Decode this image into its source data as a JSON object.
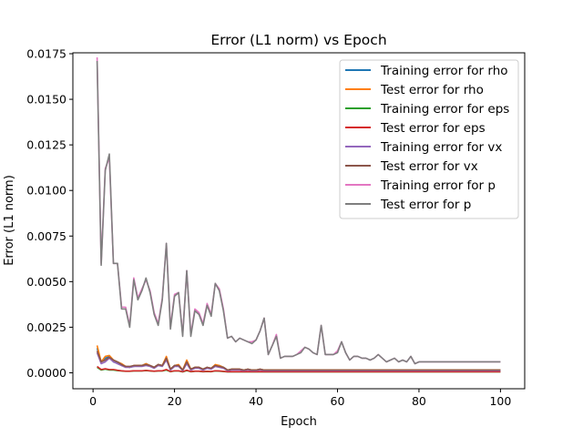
{
  "chart_data": {
    "type": "line",
    "title": "Error (L1 norm) vs Epoch",
    "xlabel": "Epoch",
    "ylabel": "Error (L1 norm)",
    "xlim": [
      -4.95,
      105.95
    ],
    "ylim": [
      -0.000875,
      0.01755
    ],
    "xticks": [
      0,
      20,
      40,
      60,
      80,
      100
    ],
    "xtick_labels": [
      "0",
      "20",
      "40",
      "60",
      "80",
      "100"
    ],
    "yticks": [
      0.0,
      0.0025,
      0.005,
      0.0075,
      0.01,
      0.0125,
      0.015,
      0.0175
    ],
    "ytick_labels": [
      "0.0000",
      "0.0025",
      "0.0050",
      "0.0075",
      "0.0100",
      "0.0125",
      "0.0150",
      "0.0175"
    ],
    "grid": false,
    "legend_position": "top-right",
    "x": [
      1,
      2,
      3,
      4,
      5,
      6,
      7,
      8,
      9,
      10,
      11,
      12,
      13,
      14,
      15,
      16,
      17,
      18,
      19,
      20,
      21,
      22,
      23,
      24,
      25,
      26,
      27,
      28,
      29,
      30,
      31,
      32,
      33,
      34,
      35,
      36,
      37,
      38,
      39,
      40,
      41,
      42,
      43,
      44,
      45,
      46,
      47,
      48,
      49,
      50,
      51,
      52,
      53,
      54,
      55,
      56,
      57,
      58,
      59,
      60,
      61,
      62,
      63,
      64,
      65,
      66,
      67,
      68,
      69,
      70,
      71,
      72,
      73,
      74,
      75,
      76,
      77,
      78,
      79,
      80,
      81,
      82,
      83,
      84,
      85,
      86,
      87,
      88,
      89,
      90,
      91,
      92,
      93,
      94,
      95,
      96,
      97,
      98,
      99,
      100
    ],
    "series": [
      {
        "name": "Training error for rho",
        "color": "#1f77b4",
        "values": [
          0.00135,
          0.0006,
          0.0008,
          0.0009,
          0.0006,
          0.00055,
          0.0004,
          0.00035,
          0.0003,
          0.00035,
          0.0004,
          0.0004,
          0.0005,
          0.0004,
          0.0003,
          0.00045,
          0.0004,
          0.0008,
          0.0002,
          0.0004,
          0.0004,
          0.00015,
          0.0006,
          0.0002,
          0.0003,
          0.0003,
          0.0002,
          0.0003,
          0.00025,
          0.0004,
          0.0004,
          0.0003,
          0.00015,
          0.0002,
          0.0002,
          0.0002,
          0.00015,
          0.0002,
          0.00015,
          0.00015,
          0.0002,
          0.00015,
          0.00015,
          0.00015,
          0.00015,
          0.00015,
          0.00015,
          0.00015,
          0.00015,
          0.00015,
          0.00015,
          0.00015,
          0.00015,
          0.00015,
          0.00015,
          0.00015,
          0.00015,
          0.00015,
          0.00015,
          0.00015,
          0.00015,
          0.00015,
          0.00015,
          0.00015,
          0.00015,
          0.00015,
          0.00015,
          0.00015,
          0.00015,
          0.00015,
          0.00015,
          0.00015,
          0.00015,
          0.00015,
          0.00015,
          0.00015,
          0.00015,
          0.00015,
          0.00015,
          0.00015,
          0.00015,
          0.00015,
          0.00015,
          0.00015,
          0.00015,
          0.00015,
          0.00015,
          0.00015,
          0.00015,
          0.00015,
          0.00015,
          0.00015,
          0.00015,
          0.00015,
          0.00015,
          0.00015,
          0.00015,
          0.00015,
          0.00015,
          0.00015
        ]
      },
      {
        "name": "Test error for rho",
        "color": "#ff7f0e",
        "values": [
          0.0015,
          0.0006,
          0.0009,
          0.00095,
          0.0007,
          0.0006,
          0.0005,
          0.00035,
          0.0003,
          0.0004,
          0.0004,
          0.0004,
          0.0005,
          0.0004,
          0.0003,
          0.00045,
          0.0004,
          0.0009,
          0.0002,
          0.0004,
          0.00045,
          0.00015,
          0.0007,
          0.0002,
          0.0003,
          0.0003,
          0.0002,
          0.0003,
          0.00025,
          0.00045,
          0.0004,
          0.0003,
          0.00015,
          0.0002,
          0.0002,
          0.0002,
          0.00015,
          0.0002,
          0.00015,
          0.00015,
          0.0002,
          0.00015,
          0.00015,
          0.00015,
          0.00015,
          0.00015,
          0.00015,
          0.00015,
          0.00015,
          0.00015,
          0.00015,
          0.00015,
          0.00015,
          0.00015,
          0.00015,
          0.00015,
          0.00015,
          0.00015,
          0.00015,
          0.00015,
          0.00015,
          0.00015,
          0.00015,
          0.00015,
          0.00015,
          0.00015,
          0.00015,
          0.00015,
          0.00015,
          0.00015,
          0.00015,
          0.00015,
          0.00015,
          0.00015,
          0.00015,
          0.00015,
          0.00015,
          0.00015,
          0.00015,
          0.00015,
          0.00015,
          0.00015,
          0.00015,
          0.00015,
          0.00015,
          0.00015,
          0.00015,
          0.00015,
          0.00015,
          0.00015,
          0.00015,
          0.00015,
          0.00015,
          0.00015,
          0.00015,
          0.00015,
          0.00015,
          0.00015,
          0.00015,
          0.00015
        ]
      },
      {
        "name": "Training error for eps",
        "color": "#2ca02c",
        "values": [
          0.0003,
          0.00015,
          0.0002,
          0.00015,
          0.00015,
          0.00012,
          0.0001,
          8e-05,
          8e-05,
          0.0001,
          0.0001,
          0.0001,
          0.00012,
          0.0001,
          8e-05,
          0.0001,
          0.0001,
          0.00015,
          6e-05,
          0.0001,
          0.0001,
          5e-05,
          0.00012,
          6e-05,
          8e-05,
          8e-05,
          6e-05,
          7e-05,
          6e-05,
          0.0001,
          9e-05,
          7e-05,
          5e-05,
          5e-05,
          5e-05,
          5e-05,
          5e-05,
          5e-05,
          5e-05,
          5e-05,
          5e-05,
          5e-05,
          5e-05,
          5e-05,
          5e-05,
          5e-05,
          5e-05,
          5e-05,
          5e-05,
          5e-05,
          5e-05,
          5e-05,
          5e-05,
          5e-05,
          5e-05,
          5e-05,
          5e-05,
          5e-05,
          5e-05,
          5e-05,
          5e-05,
          5e-05,
          5e-05,
          5e-05,
          5e-05,
          5e-05,
          5e-05,
          5e-05,
          5e-05,
          5e-05,
          5e-05,
          5e-05,
          5e-05,
          5e-05,
          5e-05,
          5e-05,
          5e-05,
          5e-05,
          5e-05,
          5e-05,
          5e-05,
          5e-05,
          5e-05,
          5e-05,
          5e-05,
          5e-05,
          5e-05,
          5e-05,
          5e-05,
          5e-05,
          5e-05,
          5e-05,
          5e-05,
          5e-05,
          5e-05,
          5e-05,
          5e-05,
          5e-05,
          5e-05,
          5e-05
        ]
      },
      {
        "name": "Test error for eps",
        "color": "#d62728",
        "values": [
          0.00035,
          0.00018,
          0.00022,
          0.00018,
          0.00018,
          0.00014,
          0.00011,
          9e-05,
          9e-05,
          0.00011,
          0.00011,
          0.00011,
          0.00013,
          0.00011,
          9e-05,
          0.00011,
          0.00011,
          0.00018,
          7e-05,
          0.00011,
          0.00011,
          6e-05,
          0.00014,
          7e-05,
          9e-05,
          9e-05,
          7e-05,
          8e-05,
          7e-05,
          0.00011,
          0.0001,
          8e-05,
          6e-05,
          6e-05,
          6e-05,
          6e-05,
          6e-05,
          6e-05,
          6e-05,
          6e-05,
          6e-05,
          6e-05,
          6e-05,
          6e-05,
          6e-05,
          6e-05,
          6e-05,
          6e-05,
          6e-05,
          6e-05,
          6e-05,
          6e-05,
          6e-05,
          6e-05,
          6e-05,
          6e-05,
          6e-05,
          6e-05,
          6e-05,
          6e-05,
          6e-05,
          6e-05,
          6e-05,
          6e-05,
          6e-05,
          6e-05,
          6e-05,
          6e-05,
          6e-05,
          6e-05,
          6e-05,
          6e-05,
          6e-05,
          6e-05,
          6e-05,
          6e-05,
          6e-05,
          6e-05,
          6e-05,
          6e-05,
          6e-05,
          6e-05,
          6e-05,
          6e-05,
          6e-05,
          6e-05,
          6e-05,
          6e-05,
          6e-05,
          6e-05,
          6e-05,
          6e-05,
          6e-05,
          6e-05,
          6e-05,
          6e-05,
          6e-05,
          6e-05,
          6e-05,
          6e-05
        ]
      },
      {
        "name": "Training error for vx",
        "color": "#9467bd",
        "values": [
          0.0011,
          0.0005,
          0.0006,
          0.0008,
          0.0006,
          0.0005,
          0.0004,
          0.0003,
          0.0003,
          0.00035,
          0.00035,
          0.00035,
          0.0004,
          0.00035,
          0.00025,
          0.0004,
          0.00035,
          0.0007,
          0.00015,
          0.00035,
          0.00035,
          0.00012,
          0.0005,
          0.00015,
          0.00025,
          0.00025,
          0.00015,
          0.00025,
          0.0002,
          0.00035,
          0.0003,
          0.00025,
          0.00012,
          0.00015,
          0.00015,
          0.00015,
          0.00012,
          0.00015,
          0.00012,
          0.00012,
          0.00015,
          0.00012,
          0.00012,
          0.00012,
          0.00012,
          0.00012,
          0.00012,
          0.00012,
          0.00012,
          0.00012,
          0.00012,
          0.00012,
          0.00012,
          0.00012,
          0.00012,
          0.00012,
          0.00012,
          0.00012,
          0.00012,
          0.00012,
          0.00012,
          0.00012,
          0.00012,
          0.00012,
          0.00012,
          0.00012,
          0.00012,
          0.00012,
          0.00012,
          0.00012,
          0.00012,
          0.00012,
          0.00012,
          0.00012,
          0.00012,
          0.00012,
          0.00012,
          0.00012,
          0.00012,
          0.00012,
          0.00012,
          0.00012,
          0.00012,
          0.00012,
          0.00012,
          0.00012,
          0.00012,
          0.00012,
          0.00012,
          0.00012,
          0.00012,
          0.00012,
          0.00012,
          0.00012,
          0.00012,
          0.00012,
          0.00012,
          0.00012,
          0.00012,
          0.00012
        ]
      },
      {
        "name": "Test error for vx",
        "color": "#8c564b",
        "values": [
          0.0012,
          0.0006,
          0.0007,
          0.00085,
          0.0007,
          0.0006,
          0.00045,
          0.00035,
          0.00035,
          0.0004,
          0.0004,
          0.0004,
          0.00045,
          0.0004,
          0.0003,
          0.00045,
          0.0004,
          0.0008,
          0.0002,
          0.0004,
          0.0004,
          0.00015,
          0.0006,
          0.0002,
          0.0003,
          0.0003,
          0.0002,
          0.0003,
          0.00025,
          0.0004,
          0.00035,
          0.0003,
          0.00015,
          0.0002,
          0.0002,
          0.0002,
          0.00015,
          0.0002,
          0.00015,
          0.00015,
          0.0002,
          0.00015,
          0.00015,
          0.00015,
          0.00015,
          0.00015,
          0.00015,
          0.00015,
          0.00015,
          0.00015,
          0.00015,
          0.00015,
          0.00015,
          0.00015,
          0.00015,
          0.00015,
          0.00015,
          0.00015,
          0.00015,
          0.00015,
          0.00015,
          0.00015,
          0.00015,
          0.00015,
          0.00015,
          0.00015,
          0.00015,
          0.00015,
          0.00015,
          0.00015,
          0.00015,
          0.00015,
          0.00015,
          0.00015,
          0.00015,
          0.00015,
          0.00015,
          0.00015,
          0.00015,
          0.00015,
          0.00015,
          0.00015,
          0.00015,
          0.00015,
          0.00015,
          0.00015,
          0.00015,
          0.00015,
          0.00015,
          0.00015,
          0.00015,
          0.00015,
          0.00015,
          0.00015,
          0.00015,
          0.00015,
          0.00015,
          0.00015,
          0.00015,
          0.00015
        ]
      },
      {
        "name": "Training error for p",
        "color": "#e377c2",
        "values": [
          0.0173,
          0.006,
          0.0112,
          0.0118,
          0.006,
          0.006,
          0.0036,
          0.0036,
          0.0026,
          0.0052,
          0.0041,
          0.0046,
          0.0051,
          0.0045,
          0.0033,
          0.0027,
          0.0041,
          0.0071,
          0.0025,
          0.0043,
          0.0044,
          0.0021,
          0.0056,
          0.0021,
          0.0035,
          0.0033,
          0.0027,
          0.0038,
          0.0032,
          0.0049,
          0.0046,
          0.0035,
          0.0019,
          0.002,
          0.0017,
          0.0019,
          0.0018,
          0.0017,
          0.0017,
          0.0018,
          0.0023,
          0.003,
          0.001,
          0.0015,
          0.0021,
          0.0008,
          0.0009,
          0.0009,
          0.0009,
          0.001,
          0.0012,
          0.0014,
          0.0013,
          0.0011,
          0.001,
          0.0026,
          0.001,
          0.001,
          0.001,
          0.0012,
          0.0017,
          0.0011,
          0.0007,
          0.0009,
          0.0009,
          0.0008,
          0.0008,
          0.0007,
          0.0008,
          0.001,
          0.0008,
          0.0006,
          0.0007,
          0.0008,
          0.0006,
          0.0007,
          0.0006,
          0.0009,
          0.0005,
          0.0006,
          0.0006,
          0.0006,
          0.0006,
          0.0006,
          0.0006,
          0.0006,
          0.0006,
          0.0006,
          0.0006,
          0.0006,
          0.0006,
          0.0006,
          0.0006,
          0.0006,
          0.0006,
          0.0006,
          0.0006,
          0.0006,
          0.0006,
          0.0006
        ]
      },
      {
        "name": "Test error for p",
        "color": "#7f7f7f",
        "values": [
          0.0171,
          0.0059,
          0.0111,
          0.012,
          0.006,
          0.006,
          0.0035,
          0.0035,
          0.0025,
          0.0051,
          0.004,
          0.0045,
          0.0052,
          0.0044,
          0.0032,
          0.0026,
          0.004,
          0.0071,
          0.0024,
          0.0042,
          0.0044,
          0.002,
          0.0056,
          0.002,
          0.0034,
          0.0032,
          0.0026,
          0.0037,
          0.0031,
          0.0049,
          0.0045,
          0.0034,
          0.0019,
          0.002,
          0.0017,
          0.0019,
          0.0018,
          0.0017,
          0.0016,
          0.0018,
          0.0023,
          0.003,
          0.001,
          0.0015,
          0.002,
          0.0008,
          0.0009,
          0.0009,
          0.0009,
          0.001,
          0.0011,
          0.0014,
          0.0013,
          0.0011,
          0.001,
          0.0026,
          0.001,
          0.001,
          0.001,
          0.0011,
          0.0017,
          0.0011,
          0.0007,
          0.0009,
          0.0009,
          0.0008,
          0.0008,
          0.0007,
          0.0008,
          0.001,
          0.0008,
          0.0006,
          0.0007,
          0.0008,
          0.0006,
          0.0007,
          0.0006,
          0.0009,
          0.0005,
          0.0006,
          0.0006,
          0.0006,
          0.0006,
          0.0006,
          0.0006,
          0.0006,
          0.0006,
          0.0006,
          0.0006,
          0.0006,
          0.0006,
          0.0006,
          0.0006,
          0.0006,
          0.0006,
          0.0006,
          0.0006,
          0.0006,
          0.0006,
          0.0006
        ]
      }
    ]
  }
}
